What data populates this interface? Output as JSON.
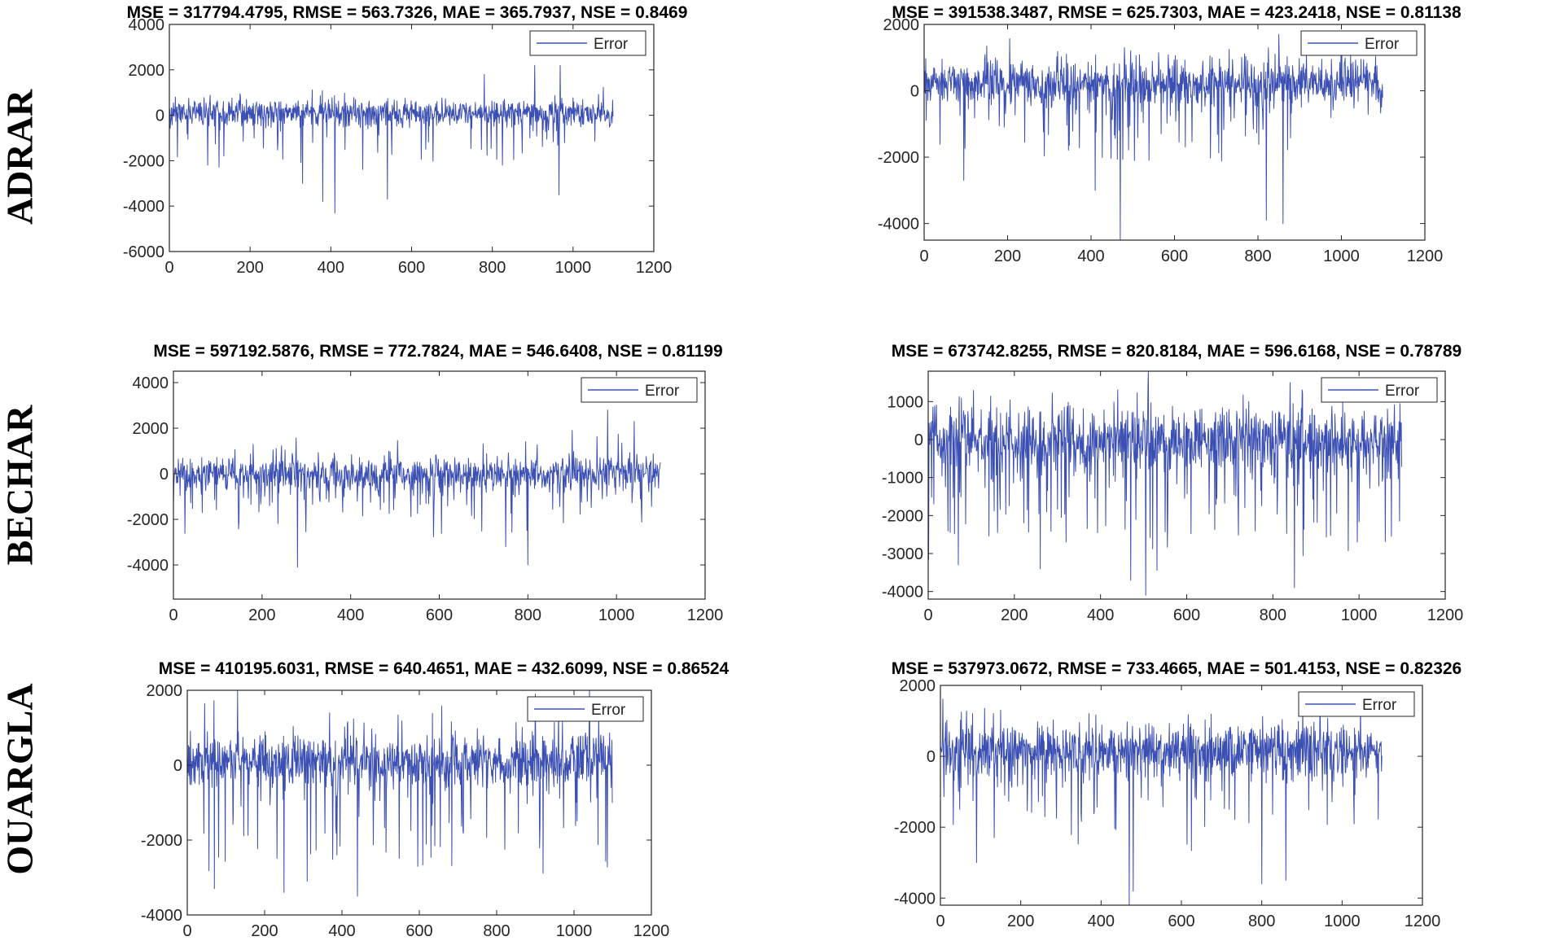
{
  "row_labels": [
    "ADRAR",
    "BECHAR",
    "OUARGLA"
  ],
  "legend_label": "Error",
  "series_color": "#3c50b4",
  "chart_data": [
    {
      "type": "line",
      "title": "MSE = 317794.4795, RMSE = 563.7326, MAE = 365.7937, NSE = 0.8469",
      "xlim": [
        0,
        1200
      ],
      "ylim": [
        -6000,
        4000
      ],
      "xticks": [
        0,
        200,
        400,
        600,
        800,
        1000,
        1200
      ],
      "yticks": [
        -6000,
        -4000,
        -2000,
        0,
        2000,
        4000
      ],
      "legend": "top-right",
      "grid": false,
      "series": [
        {
          "name": "Error",
          "n": 1100,
          "seed": 11,
          "noise_std": 300,
          "baseline": 80,
          "down_rate": 0.05,
          "down_mag": [
            300,
            2200
          ],
          "up_rate": 0.01,
          "up_mag": [
            200,
            900
          ],
          "spikes": [
            [
              410,
              -4300
            ],
            [
              380,
              -3800
            ],
            [
              540,
              -3700
            ],
            [
              965,
              -3500
            ],
            [
              330,
              -3000
            ],
            [
              95,
              -2200
            ],
            [
              905,
              2200
            ],
            [
              968,
              2200
            ],
            [
              780,
              1800
            ]
          ]
        }
      ]
    },
    {
      "type": "line",
      "title": "MSE = 391538.3487, RMSE = 625.7303, MAE = 423.2418, NSE = 0.81138",
      "xlim": [
        0,
        1200
      ],
      "ylim": [
        -4500,
        2000
      ],
      "xticks": [
        0,
        200,
        400,
        600,
        800,
        1000,
        1200
      ],
      "yticks": [
        -4000,
        -2000,
        0,
        2000
      ],
      "legend": "top-right",
      "grid": false,
      "series": [
        {
          "name": "Error",
          "n": 1100,
          "seed": 23,
          "noise_std": 350,
          "baseline": 200,
          "down_rate": 0.06,
          "down_mag": [
            300,
            2000
          ],
          "up_rate": 0.02,
          "up_mag": [
            300,
            800
          ],
          "spikes": [
            [
              470,
              -4500
            ],
            [
              820,
              -3900
            ],
            [
              860,
              -4000
            ],
            [
              410,
              -3000
            ],
            [
              95,
              -2700
            ],
            [
              480,
              1300
            ],
            [
              850,
              1700
            ],
            [
              690,
              1000
            ]
          ]
        }
      ]
    },
    {
      "type": "line",
      "title": "MSE = 597192.5876, RMSE = 772.7824, MAE = 546.6408, NSE = 0.81199",
      "xlim": [
        0,
        1200
      ],
      "ylim": [
        -5500,
        4500
      ],
      "xticks": [
        0,
        200,
        400,
        600,
        800,
        1000,
        1200
      ],
      "yticks": [
        -4000,
        -2000,
        0,
        2000,
        4000
      ],
      "legend": "top-right",
      "grid": false,
      "series": [
        {
          "name": "Error",
          "n": 1100,
          "seed": 37,
          "noise_std": 380,
          "baseline": 0,
          "down_rate": 0.08,
          "down_mag": [
            400,
            2300
          ],
          "up_rate": 0.02,
          "up_mag": [
            300,
            1200
          ],
          "spikes": [
            [
              280,
              -4100
            ],
            [
              800,
              -4000
            ],
            [
              750,
              -3200
            ],
            [
              980,
              2800
            ],
            [
              900,
              1900
            ],
            [
              1040,
              2300
            ]
          ]
        }
      ]
    },
    {
      "type": "line",
      "title": "MSE = 673742.8255, RMSE = 820.8184, MAE = 596.6168, NSE = 0.78789",
      "xlim": [
        0,
        1200
      ],
      "ylim": [
        -4200,
        1800
      ],
      "xticks": [
        0,
        200,
        400,
        600,
        800,
        1000,
        1200
      ],
      "yticks": [
        -4000,
        -3000,
        -2000,
        -1000,
        0,
        1000
      ],
      "legend": "top-right",
      "grid": false,
      "series": [
        {
          "name": "Error",
          "n": 1100,
          "seed": 53,
          "noise_std": 450,
          "baseline": -50,
          "down_rate": 0.09,
          "down_mag": [
            500,
            2600
          ],
          "up_rate": 0.04,
          "up_mag": [
            300,
            900
          ],
          "spikes": [
            [
              505,
              -4100
            ],
            [
              850,
              -3900
            ],
            [
              470,
              -3700
            ],
            [
              70,
              -3300
            ],
            [
              260,
              -3400
            ],
            [
              510,
              1400
            ],
            [
              840,
              1500
            ]
          ]
        }
      ]
    },
    {
      "type": "line",
      "title": "MSE = 410195.6031, RMSE = 640.4651, MAE = 432.6099, NSE = 0.86524",
      "xlim": [
        0,
        1200
      ],
      "ylim": [
        -4000,
        2000
      ],
      "xticks": [
        0,
        200,
        400,
        600,
        800,
        1000,
        1200
      ],
      "yticks": [
        -4000,
        -2000,
        0,
        2000
      ],
      "legend": "top-right",
      "grid": false,
      "series": [
        {
          "name": "Error",
          "n": 1100,
          "seed": 71,
          "noise_std": 350,
          "baseline": 100,
          "down_rate": 0.08,
          "down_mag": [
            400,
            2800
          ],
          "up_rate": 0.02,
          "up_mag": [
            300,
            1200
          ],
          "spikes": [
            [
              440,
              -3500
            ],
            [
              250,
              -3400
            ],
            [
              70,
              -3300
            ],
            [
              310,
              -3100
            ],
            [
              130,
              2000
            ],
            [
              1040,
              2000
            ],
            [
              900,
              1900
            ],
            [
              960,
              1500
            ]
          ]
        }
      ]
    },
    {
      "type": "line",
      "title": "MSE = 537973.0672, RMSE = 733.4665, MAE = 501.4153, NSE = 0.82326",
      "xlim": [
        0,
        1200
      ],
      "ylim": [
        -4200,
        2000
      ],
      "xticks": [
        0,
        200,
        400,
        600,
        800,
        1000,
        1200
      ],
      "yticks": [
        -4000,
        -2000,
        0,
        2000
      ],
      "legend": "top-right",
      "grid": false,
      "series": [
        {
          "name": "Error",
          "n": 1100,
          "seed": 89,
          "noise_std": 380,
          "baseline": 150,
          "down_rate": 0.07,
          "down_mag": [
            400,
            2400
          ],
          "up_rate": 0.03,
          "up_mag": [
            300,
            900
          ],
          "spikes": [
            [
              470,
              -4200
            ],
            [
              480,
              -3800
            ],
            [
              800,
              -3600
            ],
            [
              860,
              -3500
            ],
            [
              90,
              -3000
            ],
            [
              150,
              1300
            ],
            [
              80,
              1200
            ]
          ]
        }
      ]
    }
  ]
}
